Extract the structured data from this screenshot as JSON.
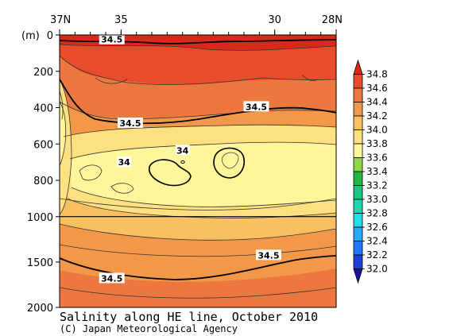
{
  "chart_data": {
    "type": "heatmap",
    "title": "Salinity along HE line, October 2010",
    "credit": "(C) Japan Meteorological Agency",
    "ylabel_unit": "(m)",
    "x_axis": {
      "ticks": [
        {
          "lat": 37,
          "label": "37N"
        },
        {
          "lat": 35,
          "label": "35"
        },
        {
          "lat": 30,
          "label": "30"
        },
        {
          "lat": 28,
          "label": "28N"
        }
      ],
      "range": [
        37,
        28
      ],
      "minor_step": 0.5
    },
    "y_axis": {
      "ticks": [
        {
          "depth": 0,
          "label": "0"
        },
        {
          "depth": 200,
          "label": "200"
        },
        {
          "depth": 400,
          "label": "400"
        },
        {
          "depth": 600,
          "label": "600"
        },
        {
          "depth": 800,
          "label": "800"
        },
        {
          "depth": 1000,
          "label": "1000"
        },
        {
          "depth": 1500,
          "label": "1500"
        },
        {
          "depth": 2000,
          "label": "2000"
        }
      ],
      "segments": [
        {
          "from": 0,
          "to": 1000,
          "share": 0.667
        },
        {
          "from": 1000,
          "to": 2000,
          "share": 0.333
        }
      ],
      "reference_line": 1000
    },
    "colorbar": {
      "levels": [
        "32.0",
        "32.2",
        "32.4",
        "32.6",
        "32.8",
        "33.0",
        "33.2",
        "33.4",
        "33.6",
        "33.8",
        "34.0",
        "34.2",
        "34.4",
        "34.6",
        "34.8"
      ],
      "colors": [
        "#1a10a0",
        "#1c3fe0",
        "#2277ff",
        "#22aaff",
        "#22ddee",
        "#20d8b0",
        "#18c880",
        "#20b840",
        "#8ed848",
        "#fff59a",
        "#fde080",
        "#f8c060",
        "#f39848",
        "#ec7840",
        "#e84c2c",
        "#d82a1a"
      ]
    },
    "contour_labels": [
      {
        "text": "34.5",
        "lat": 35.3,
        "depth": 25
      },
      {
        "text": "34.5",
        "lat": 30.6,
        "depth": 395
      },
      {
        "text": "34.5",
        "lat": 34.7,
        "depth": 485
      },
      {
        "text": "34",
        "lat": 33.0,
        "depth": 635
      },
      {
        "text": "34",
        "lat": 34.9,
        "depth": 700
      },
      {
        "text": "34.5",
        "lat": 30.2,
        "depth": 1425
      },
      {
        "text": "34.5",
        "lat": 35.3,
        "depth": 1680
      }
    ]
  }
}
